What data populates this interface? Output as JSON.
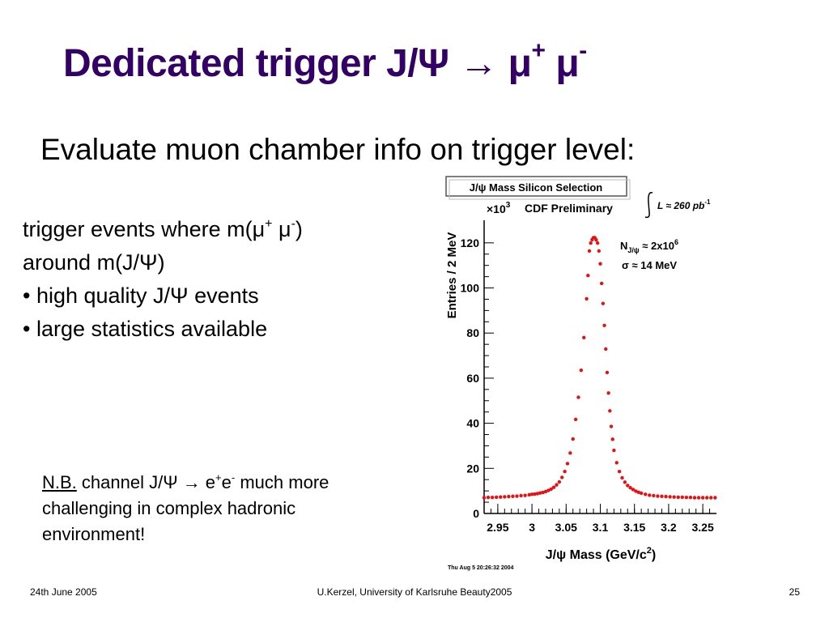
{
  "slide": {
    "title_main": "Dedicated trigger J/Ψ → μ",
    "title_sup1": "+",
    "title_mid": " μ",
    "title_sup2": "-",
    "subtitle": "Evaluate muon chamber info on trigger level:",
    "line1a": "trigger events where  m(μ",
    "line1b": "+",
    "line1c": " μ",
    "line1d": "-",
    "line1e": ")",
    "line2": "around m(J/Ψ)",
    "line3": "• high quality J/Ψ events",
    "line4": "• large statistics available",
    "note_nb": "N.B.",
    "note_a": " channel J/Ψ → e",
    "note_b": "+",
    "note_c": "e",
    "note_d": "-",
    "note_e": " much more",
    "note_line2": "challenging in complex hadronic",
    "note_line3": "environment!",
    "footer_date": "24th June 2005",
    "footer_center": "U.Kerzel, University of Karlsruhe Beauty2005",
    "footer_page": "25"
  },
  "chart_data": {
    "type": "scatter",
    "title": "J/ψ Mass Silicon Selection",
    "label_preliminary": "CDF Preliminary",
    "y_multiplier": "×10",
    "y_multiplier_exp": "3",
    "luminosity_a": "L ≈ 260 pb",
    "luminosity_b": "-1",
    "annot_n_a": "N",
    "annot_n_b": "J/ψ",
    "annot_n_c": " ≈ 2x10",
    "annot_n_d": "6",
    "annot_sigma": "σ ≈ 14 MeV",
    "xlabel_a": "J/ψ Mass (GeV/c",
    "xlabel_b": "2",
    "xlabel_c": ")",
    "ylabel": "Entries / 2 MeV",
    "timestamp": "Thu Aug  5 20:26:32 2004",
    "xlim": [
      2.93,
      3.27
    ],
    "ylim": [
      0,
      130
    ],
    "x_ticks": [
      "2.95",
      "3",
      "3.05",
      "3.1",
      "3.15",
      "3.2",
      "3.25"
    ],
    "y_ticks": [
      "0",
      "20",
      "40",
      "60",
      "80",
      "100",
      "120"
    ],
    "series": [
      {
        "color": "#e81010",
        "x": [
          2.93,
          2.936,
          2.942,
          2.948,
          2.954,
          2.96,
          2.966,
          2.972,
          2.978,
          2.984,
          2.99,
          2.996,
          3.0,
          3.004,
          3.008,
          3.012,
          3.016,
          3.02,
          3.024,
          3.028,
          3.032,
          3.036,
          3.04,
          3.044,
          3.048,
          3.052,
          3.056,
          3.06,
          3.064,
          3.068,
          3.072,
          3.076,
          3.08,
          3.082,
          3.084,
          3.086,
          3.088,
          3.09,
          3.092,
          3.094,
          3.096,
          3.098,
          3.1,
          3.102,
          3.104,
          3.106,
          3.108,
          3.11,
          3.112,
          3.114,
          3.116,
          3.118,
          3.12,
          3.124,
          3.128,
          3.132,
          3.136,
          3.14,
          3.144,
          3.148,
          3.152,
          3.156,
          3.16,
          3.166,
          3.172,
          3.178,
          3.184,
          3.19,
          3.196,
          3.202,
          3.208,
          3.214,
          3.22,
          3.226,
          3.232,
          3.238,
          3.244,
          3.25,
          3.256,
          3.262,
          3.268
        ],
        "y": [
          7.0,
          7.1,
          7.1,
          7.2,
          7.3,
          7.4,
          7.5,
          7.6,
          7.7,
          7.9,
          8.0,
          8.3,
          8.5,
          8.6,
          8.8,
          9.1,
          9.3,
          9.7,
          10.2,
          10.8,
          11.6,
          12.7,
          14.0,
          16.0,
          18.6,
          22.1,
          26.8,
          33.0,
          41.7,
          51.5,
          63.5,
          78.0,
          95.2,
          105.5,
          116.4,
          119.9,
          121.4,
          122.3,
          122.3,
          121.3,
          119.9,
          116.4,
          110.7,
          102.0,
          93.1,
          83.4,
          72.9,
          62.5,
          53.4,
          45.5,
          38.6,
          32.9,
          28.0,
          22.5,
          18.6,
          15.8,
          13.9,
          12.4,
          11.4,
          10.6,
          9.9,
          9.4,
          9.0,
          8.5,
          8.1,
          7.9,
          7.7,
          7.6,
          7.5,
          7.4,
          7.3,
          7.2,
          7.2,
          7.1,
          7.1,
          7.0,
          7.0,
          7.0,
          7.0,
          7.0,
          7.0
        ]
      }
    ]
  }
}
